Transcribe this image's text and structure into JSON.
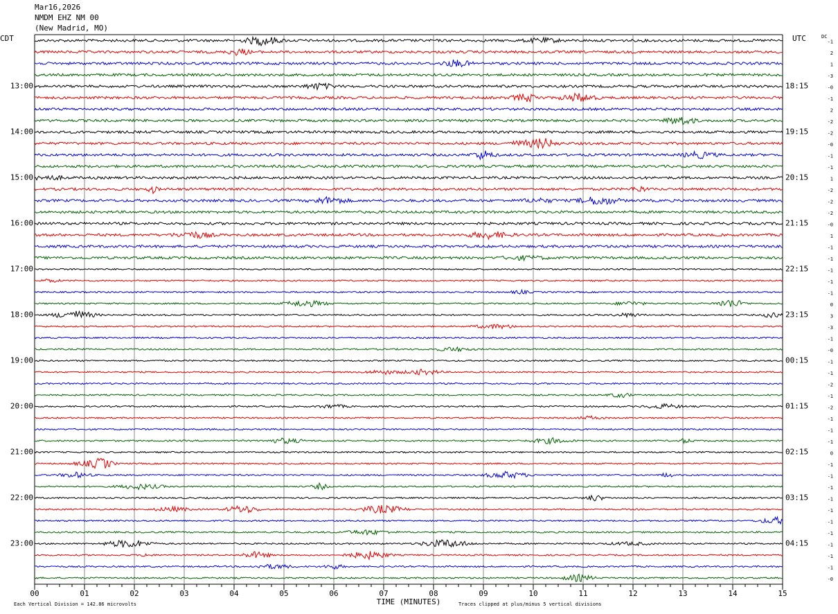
{
  "header": {
    "lines": [
      "Mar16,2026",
      "NMDM EHZ NM 00",
      "(New Madrid, MO)"
    ]
  },
  "left_zone": "CDT",
  "right_zone": "UTC",
  "dc_label": "DC",
  "hour_rows": [
    {
      "row": 4,
      "local": "13:00",
      "utc": "18:15"
    },
    {
      "row": 8,
      "local": "14:00",
      "utc": "19:15"
    },
    {
      "row": 12,
      "local": "15:00",
      "utc": "20:15"
    },
    {
      "row": 16,
      "local": "16:00",
      "utc": "21:15"
    },
    {
      "row": 20,
      "local": "17:00",
      "utc": "22:15"
    },
    {
      "row": 24,
      "local": "18:00",
      "utc": "23:15"
    },
    {
      "row": 28,
      "local": "19:00",
      "utc": "00:15"
    },
    {
      "row": 32,
      "local": "20:00",
      "utc": "01:15"
    },
    {
      "row": 36,
      "local": "21:00",
      "utc": "02:15"
    },
    {
      "row": 40,
      "local": "22:00",
      "utc": "03:15"
    },
    {
      "row": 44,
      "local": "23:00",
      "utc": "04:15"
    }
  ],
  "dc_offsets": [
    "-1",
    "2",
    "1",
    "-3",
    "-0",
    "-1",
    "2",
    "-2",
    "-2",
    "-0",
    "-1",
    "-1",
    "1",
    "-2",
    "-2",
    "-2",
    "-0",
    "1",
    "-1",
    "-1",
    "-1",
    "-1",
    "-1",
    "0",
    "3",
    "-3",
    "-1",
    "-0",
    "-1",
    "-1",
    "-2",
    "-1",
    "-2",
    "-1",
    "-1",
    "-1",
    "0",
    "-1",
    "-1",
    "-1",
    "-1",
    "-1",
    "-1",
    "-1",
    "-1",
    "-1",
    "-1",
    "-0"
  ],
  "x_ticks": [
    "00",
    "01",
    "02",
    "03",
    "04",
    "05",
    "06",
    "07",
    "08",
    "09",
    "10",
    "11",
    "12",
    "13",
    "14",
    "15"
  ],
  "x_title": "TIME (MINUTES)",
  "footer_left": "Each Vertical Division =  142.86 microvolts",
  "footer_right": "Traces clipped at plus/minus 5 vertical divisions"
}
